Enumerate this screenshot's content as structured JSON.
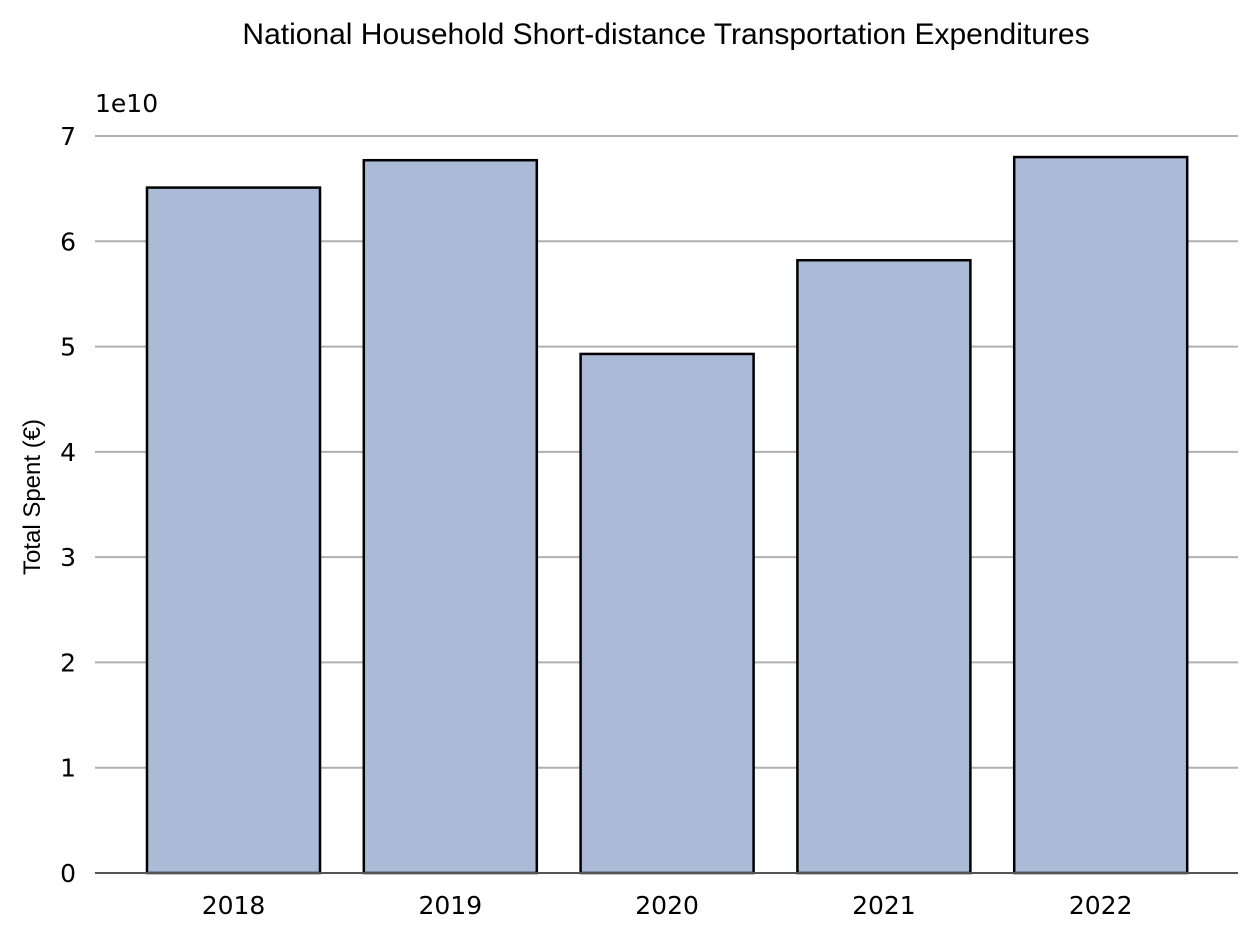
{
  "chart_data": {
    "type": "bar",
    "title": "National Household Short-distance Transportation Expenditures",
    "xlabel": "",
    "ylabel": "Total Spent (€)",
    "y_offset_label": "1e10",
    "categories": [
      "2018",
      "2019",
      "2020",
      "2021",
      "2022"
    ],
    "values": [
      65100000000,
      67700000000,
      49300000000,
      58200000000,
      68000000000
    ],
    "ylim": [
      0,
      70000000000
    ],
    "y_ticks": [
      0,
      1,
      2,
      3,
      4,
      5,
      6,
      7
    ],
    "y_tick_scale": 10000000000,
    "grid": "horizontal",
    "legend": "none",
    "colors": {
      "bar_fill": "#abbad7",
      "bar_edge": "#000000",
      "grid": "#b0b0b0"
    }
  }
}
